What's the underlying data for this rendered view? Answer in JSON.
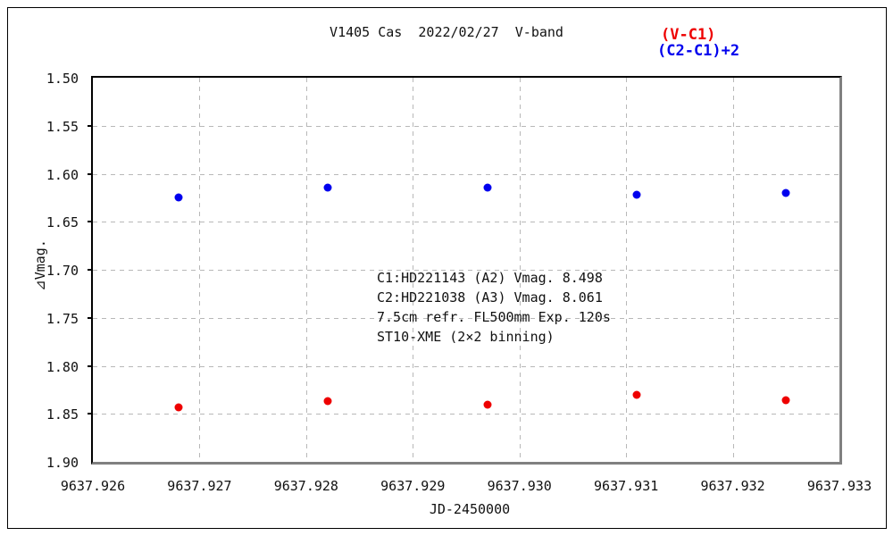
{
  "window": {
    "background": "#ffffff",
    "outer_border_color": "#000000"
  },
  "chart_data": {
    "type": "scatter",
    "title": "V1405 Cas  2022/02/27  V-band",
    "xlabel": "JD-2450000",
    "ylabel": "⊿Vmag.",
    "xlim": [
      9637.926,
      9637.933
    ],
    "ylim": [
      1.5,
      1.9
    ],
    "y_axis_direction": "inverted-magnitude (1.50 at top, 1.90 at bottom)",
    "x_ticks": [
      "9637.926",
      "9637.927",
      "9637.928",
      "9637.929",
      "9637.930",
      "9637.931",
      "9637.932",
      "9637.933"
    ],
    "y_ticks": [
      "1.50",
      "1.55",
      "1.60",
      "1.65",
      "1.70",
      "1.75",
      "1.80",
      "1.85",
      "1.90"
    ],
    "grid": "dashed",
    "grid_color": "#b8b8b8",
    "legend_position": "top-right, outside plot",
    "series": [
      {
        "name": "(V-C1)",
        "color": "#ee0000",
        "points": [
          [
            9637.9268,
            1.843
          ],
          [
            9637.9282,
            1.837
          ],
          [
            9637.9297,
            1.84
          ],
          [
            9637.9311,
            1.83
          ],
          [
            9637.9325,
            1.836
          ]
        ]
      },
      {
        "name": "(C2-C1)+2",
        "color": "#0000ee",
        "points": [
          [
            9637.9268,
            1.625
          ],
          [
            9637.9282,
            1.614
          ],
          [
            9637.9297,
            1.614
          ],
          [
            9637.9311,
            1.622
          ],
          [
            9637.9325,
            1.62
          ]
        ]
      }
    ],
    "annotation": {
      "lines": [
        "C1:HD221143 (A2) Vmag. 8.498",
        "C2:HD221038 (A3) Vmag. 8.061",
        "7.5cm refr. FL500mm Exp. 120s",
        "ST10-XME (2×2 binning)"
      ]
    }
  }
}
